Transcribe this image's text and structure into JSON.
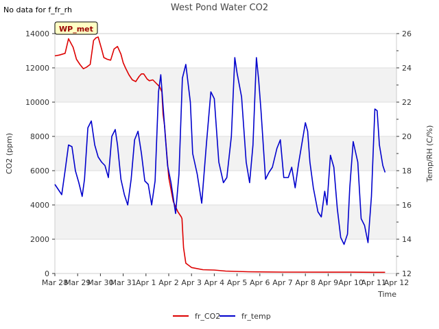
{
  "no_data_note": "No data for f_fr_rh",
  "badge_label": "WP_met",
  "chart_data": {
    "type": "line",
    "title": "West Pond Water CO2",
    "xlabel": "Time",
    "ylabel": "CO2 (ppm)",
    "y2label": "Temp/RH (C/%)",
    "xlim": [
      0,
      15
    ],
    "ylim": [
      0,
      14000
    ],
    "y2lim": [
      12,
      26
    ],
    "x_ticks": [
      {
        "v": 0,
        "label": "Mar 28"
      },
      {
        "v": 1,
        "label": "Mar 29"
      },
      {
        "v": 2,
        "label": "Mar 30"
      },
      {
        "v": 3,
        "label": "Mar 31"
      },
      {
        "v": 4,
        "label": "Apr 1"
      },
      {
        "v": 5,
        "label": "Apr 2"
      },
      {
        "v": 6,
        "label": "Apr 3"
      },
      {
        "v": 7,
        "label": "Apr 4"
      },
      {
        "v": 8,
        "label": "Apr 5"
      },
      {
        "v": 9,
        "label": "Apr 6"
      },
      {
        "v": 10,
        "label": "Apr 7"
      },
      {
        "v": 11,
        "label": "Apr 8"
      },
      {
        "v": 12,
        "label": "Apr 9"
      },
      {
        "v": 13,
        "label": "Apr 10"
      },
      {
        "v": 14,
        "label": "Apr 11"
      },
      {
        "v": 15,
        "label": "Apr 12"
      }
    ],
    "y_ticks": [
      0,
      2000,
      4000,
      6000,
      8000,
      10000,
      12000,
      14000
    ],
    "y2_ticks": [
      12,
      14,
      16,
      18,
      20,
      22,
      24,
      26
    ],
    "legend": {
      "position": "bottom-center"
    },
    "series": [
      {
        "name": "fr_CO2",
        "color": "#dd0000",
        "axis": "left",
        "x": [
          0.0,
          0.2,
          0.45,
          0.6,
          0.8,
          0.95,
          1.1,
          1.25,
          1.4,
          1.55,
          1.7,
          1.8,
          1.9,
          2.05,
          2.15,
          2.3,
          2.45,
          2.6,
          2.75,
          2.9,
          3.0,
          3.1,
          3.25,
          3.4,
          3.55,
          3.7,
          3.8,
          3.9,
          4.05,
          4.15,
          4.3,
          4.45,
          4.6,
          4.7,
          4.75,
          4.82,
          4.9,
          5.0,
          5.2,
          5.4,
          5.55,
          5.58,
          5.65,
          5.75,
          6.0,
          6.5,
          7.0,
          7.5,
          8.5,
          10.0,
          12.0,
          13.0,
          14.0,
          14.5
        ],
        "values": [
          12700,
          12750,
          12850,
          13700,
          13200,
          12500,
          12200,
          11950,
          12050,
          12200,
          13600,
          13750,
          13800,
          13100,
          12600,
          12500,
          12450,
          13100,
          13250,
          12800,
          12300,
          12000,
          11600,
          11300,
          11200,
          11500,
          11650,
          11650,
          11350,
          11250,
          11300,
          11100,
          10900,
          10600,
          9300,
          8600,
          7200,
          5600,
          4200,
          3600,
          3300,
          3200,
          1500,
          600,
          350,
          220,
          200,
          140,
          100,
          80,
          75,
          75,
          70,
          70
        ]
      },
      {
        "name": "fr_temp",
        "color": "#0000cc",
        "axis": "right",
        "x": [
          0.0,
          0.15,
          0.3,
          0.45,
          0.6,
          0.75,
          0.9,
          1.05,
          1.2,
          1.3,
          1.45,
          1.6,
          1.75,
          1.9,
          2.05,
          2.2,
          2.35,
          2.5,
          2.65,
          2.75,
          2.9,
          3.05,
          3.2,
          3.35,
          3.5,
          3.65,
          3.8,
          3.95,
          4.1,
          4.25,
          4.4,
          4.55,
          4.65,
          4.85,
          4.95,
          5.1,
          5.3,
          5.45,
          5.6,
          5.75,
          5.95,
          6.05,
          6.25,
          6.45,
          6.65,
          6.85,
          7.0,
          7.2,
          7.4,
          7.55,
          7.75,
          7.9,
          8.0,
          8.2,
          8.4,
          8.55,
          8.7,
          8.85,
          8.95,
          9.05,
          9.25,
          9.4,
          9.55,
          9.75,
          9.9,
          10.05,
          10.25,
          10.4,
          10.55,
          10.7,
          10.85,
          11.0,
          11.1,
          11.2,
          11.35,
          11.55,
          11.7,
          11.85,
          11.95,
          12.1,
          12.25,
          12.4,
          12.55,
          12.7,
          12.85,
          12.95,
          13.1,
          13.3,
          13.45,
          13.6,
          13.75,
          13.9,
          14.05,
          14.15,
          14.25,
          14.4,
          14.5
        ],
        "values": [
          17.2,
          16.9,
          16.6,
          18.0,
          19.5,
          19.4,
          18.0,
          17.3,
          16.5,
          17.5,
          20.5,
          20.9,
          19.5,
          18.8,
          18.5,
          18.3,
          17.6,
          20.0,
          20.4,
          19.5,
          17.5,
          16.6,
          16.0,
          17.5,
          19.8,
          20.3,
          19.0,
          17.4,
          17.2,
          16.0,
          17.4,
          22.6,
          23.6,
          20.0,
          18.3,
          17.3,
          15.5,
          17.8,
          23.4,
          24.2,
          22.0,
          19.0,
          17.8,
          16.1,
          19.5,
          22.6,
          22.2,
          18.5,
          17.3,
          17.6,
          20.0,
          24.6,
          23.7,
          22.3,
          18.5,
          17.3,
          19.5,
          24.6,
          23.3,
          21.5,
          17.5,
          17.9,
          18.2,
          19.3,
          19.8,
          17.6,
          17.6,
          18.2,
          17.0,
          18.4,
          19.6,
          20.8,
          20.3,
          18.5,
          17.0,
          15.6,
          15.3,
          16.8,
          16.0,
          18.9,
          18.2,
          15.8,
          14.1,
          13.7,
          14.3,
          17.0,
          19.7,
          18.5,
          15.2,
          14.8,
          13.8,
          16.5,
          21.6,
          21.5,
          19.5,
          18.3,
          17.9
        ]
      }
    ]
  }
}
